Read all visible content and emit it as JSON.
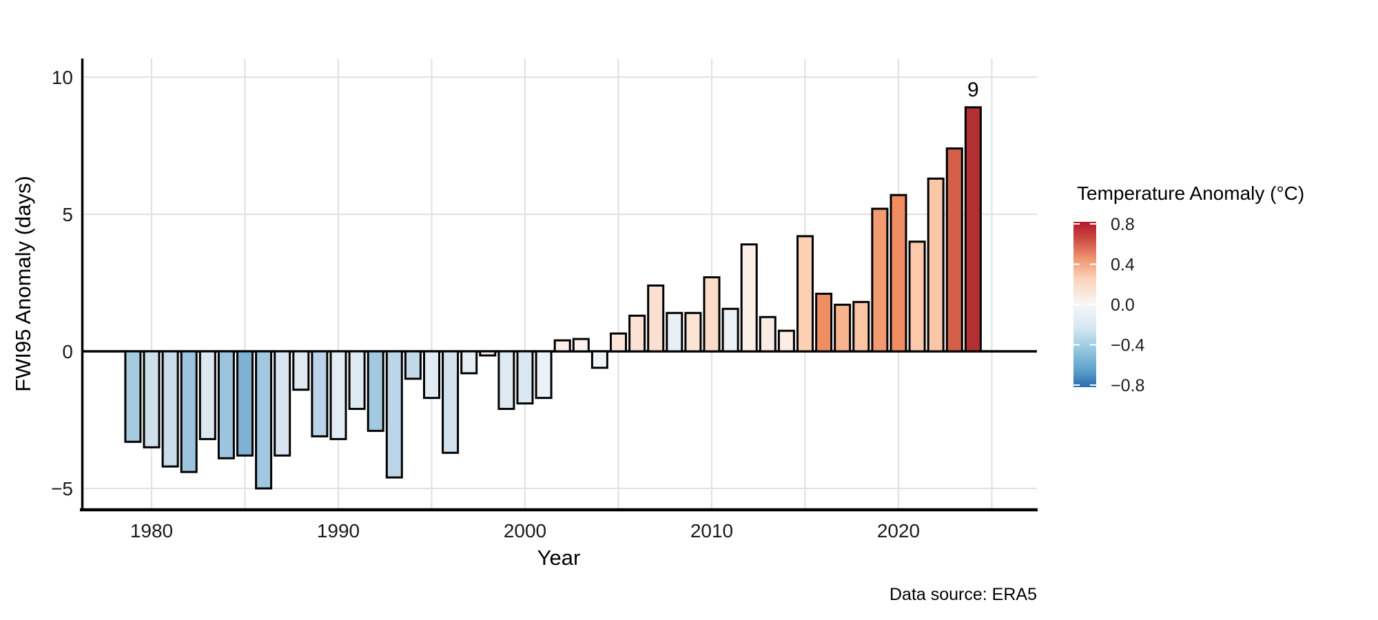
{
  "figure": {
    "background": "#ffffff",
    "caption": "Data source: ERA5"
  },
  "chart_data": {
    "type": "bar",
    "title": "",
    "xlabel": "Year",
    "ylabel": "FWI95 Anomaly (days)",
    "series_name": "FWI95 anomaly by year, colored by temperature anomaly",
    "x_tick_labels": [
      "1980",
      "1990",
      "2000",
      "2010",
      "2020"
    ],
    "x_tick_years": [
      1980,
      1990,
      2000,
      2010,
      2020
    ],
    "y_tick_labels": [
      "10",
      "5",
      "0",
      "−5"
    ],
    "y_tick_values": [
      10,
      5,
      0,
      -5
    ],
    "xlim": [
      1976.2,
      2027.4
    ],
    "ylim": [
      -5.8,
      10.7
    ],
    "grid": {
      "vertical_every_years": 5,
      "vertical_from": 1980,
      "vertical_to": 2025,
      "horizontal_at": [
        10,
        5,
        -5
      ],
      "grid_color": "#e2e2e2",
      "zero_line_color": "#000000"
    },
    "axis_color": "#000000",
    "bar_outline_color": "#000000",
    "annotation": {
      "text": "9",
      "year": 2024,
      "value": 8.9
    },
    "years": [
      1979,
      1980,
      1981,
      1982,
      1983,
      1984,
      1985,
      1986,
      1987,
      1988,
      1989,
      1990,
      1991,
      1992,
      1993,
      1994,
      1995,
      1996,
      1997,
      1998,
      1999,
      2000,
      2001,
      2002,
      2003,
      2004,
      2005,
      2006,
      2007,
      2008,
      2009,
      2010,
      2011,
      2012,
      2013,
      2014,
      2015,
      2016,
      2017,
      2018,
      2019,
      2020,
      2021,
      2022,
      2023,
      2024
    ],
    "values": [
      -3.3,
      -3.5,
      -4.2,
      -4.4,
      -3.2,
      -3.9,
      -3.8,
      -5.0,
      -3.8,
      -1.4,
      -3.1,
      -3.2,
      -2.1,
      -2.9,
      -4.6,
      -1.0,
      -1.7,
      -3.7,
      -0.8,
      -0.15,
      -2.1,
      -1.9,
      -1.7,
      0.4,
      0.45,
      -0.6,
      0.65,
      1.3,
      2.4,
      1.4,
      1.4,
      2.7,
      1.55,
      3.9,
      1.25,
      0.75,
      4.2,
      2.1,
      1.7,
      1.8,
      5.2,
      5.7,
      4.0,
      6.3,
      7.4,
      8.9
    ],
    "temp_anomaly_est": [
      -0.38,
      -0.22,
      -0.25,
      -0.45,
      -0.15,
      -0.45,
      -0.55,
      -0.42,
      -0.17,
      -0.14,
      -0.32,
      -0.12,
      -0.14,
      -0.42,
      -0.31,
      -0.28,
      -0.13,
      -0.2,
      -0.1,
      0.03,
      -0.14,
      -0.16,
      -0.07,
      0.07,
      0.05,
      -0.05,
      0.12,
      0.13,
      0.15,
      -0.09,
      0.13,
      0.17,
      -0.06,
      0.07,
      0.09,
      0.08,
      0.22,
      0.48,
      0.32,
      0.27,
      0.42,
      0.48,
      0.25,
      0.26,
      0.58,
      0.75
    ],
    "bar_colors": [
      "#a6cade",
      "#cfe0ed",
      "#c9ddec",
      "#9cc4df",
      "#dbe7f1",
      "#9cc4df",
      "#7fb1d5",
      "#a2c7e0",
      "#d8e5f0",
      "#dee9f2",
      "#bad3e8",
      "#e2ecf4",
      "#deeaf2",
      "#a3c9e1",
      "#bcd6e9",
      "#c2d9ea",
      "#e0ebf3",
      "#d2e2ef",
      "#e6eef5",
      "#fbf0ea",
      "#dfe9f2",
      "#dbe7f0",
      "#edf2f7",
      "#fdf0e9",
      "#fdf3ee",
      "#eff4f8",
      "#fbe5d8",
      "#fbe2d2",
      "#fbdfd0",
      "#e8eff5",
      "#fce4d5",
      "#fcdcc8",
      "#edf2f6",
      "#fcefe7",
      "#faece3",
      "#fceee5",
      "#fbd0b3",
      "#ef8e64",
      "#f8b48e",
      "#fcc5a3",
      "#f29b71",
      "#f08c61",
      "#fcc9ab",
      "#fbc7a7",
      "#d5604a",
      "#b23031"
    ],
    "legend": {
      "title": "Temperature Anomaly (°C)",
      "position": "right",
      "tick_labels": [
        "0.8",
        "0.4",
        "0.0",
        "−0.4",
        "−0.8"
      ],
      "tick_values": [
        0.8,
        0.4,
        0.0,
        -0.4,
        -0.8
      ],
      "gradient_stops": [
        [
          0.0,
          "#b2182b"
        ],
        [
          0.1,
          "#cb4a41"
        ],
        [
          0.22,
          "#ee9470"
        ],
        [
          0.34,
          "#fbd2b8"
        ],
        [
          0.5,
          "#f7f7f7"
        ],
        [
          0.64,
          "#d6e7f2"
        ],
        [
          0.78,
          "#92c5de"
        ],
        [
          0.9,
          "#5ba0ca"
        ],
        [
          1.0,
          "#2a6cb0"
        ]
      ]
    }
  }
}
